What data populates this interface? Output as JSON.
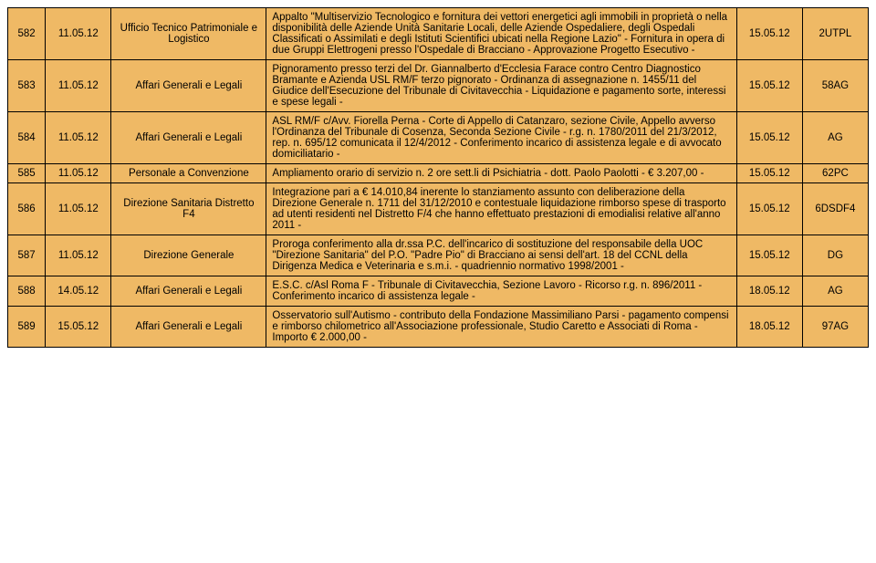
{
  "rows": [
    {
      "num": "582",
      "date1": "11.05.12",
      "dept": "Ufficio Tecnico Patrimoniale e Logistico",
      "desc": "Appalto \"Multiservizio Tecnologico e fornitura dei vettori energetici agli immobili in proprietà o nella disponibilità delle Aziende Unità Sanitarie Locali, delle Aziende Ospedaliere, degli Ospedali Classificati o Assimilati e degli Istituti Scientifici ubicati nella Regione Lazio\" - Fornitura in opera di due Gruppi Elettrogeni presso l'Ospedale di Bracciano - Approvazione Progetto Esecutivo -",
      "date2": "15.05.12",
      "code": "2UTPL"
    },
    {
      "num": "583",
      "date1": "11.05.12",
      "dept": "Affari Generali e Legali",
      "desc": "Pignoramento presso terzi del Dr. Giannalberto d'Ecclesia Farace contro Centro Diagnostico Bramante e Azienda USL RM/F terzo pignorato - Ordinanza di assegnazione n. 1455/11 del Giudice dell'Esecuzione del Tribunale di Civitavecchia - Liquidazione e pagamento sorte, interessi e spese legali -",
      "date2": "15.05.12",
      "code": "58AG"
    },
    {
      "num": "584",
      "date1": "11.05.12",
      "dept": "Affari Generali e Legali",
      "desc": "ASL RM/F c/Avv. Fiorella Perna - Corte di Appello di Catanzaro, sezione Civile, Appello avverso l'Ordinanza del Tribunale di Cosenza, Seconda Sezione Civile - r.g. n. 1780/2011 del 21/3/2012, rep. n. 695/12 comunicata il 12/4/2012 - Conferimento incarico di assistenza legale e di avvocato domiciliatario -",
      "date2": "15.05.12",
      "code": "AG"
    },
    {
      "num": "585",
      "date1": "11.05.12",
      "dept": "Personale a Convenzione",
      "desc": "Ampliamento orario di servizio n. 2 ore sett.li di Psichiatria - dott. Paolo Paolotti - € 3.207,00 -",
      "date2": "15.05.12",
      "code": "62PC"
    },
    {
      "num": "586",
      "date1": "11.05.12",
      "dept": "Direzione Sanitaria Distretto F4",
      "desc": "Integrazione pari a € 14.010,84 inerente lo stanziamento assunto con deliberazione della Direzione Generale n. 1711 del 31/12/2010 e contestuale liquidazione rimborso spese di trasporto ad utenti residenti nel Distretto F/4 che hanno effettuato prestazioni di emodialisi relative all'anno 2011 -",
      "date2": "15.05.12",
      "code": "6DSDF4"
    },
    {
      "num": "587",
      "date1": "11.05.12",
      "dept": "Direzione Generale",
      "desc": "Proroga conferimento alla dr.ssa P.C. dell'incarico di sostituzione del responsabile della UOC \"Direzione Sanitaria\" del P.O. \"Padre Pio\" di Bracciano ai sensi dell'art. 18 del CCNL della Dirigenza Medica e Veterinaria e s.m.i. - quadriennio normativo 1998/2001 -",
      "date2": "15.05.12",
      "code": "DG"
    },
    {
      "num": "588",
      "date1": "14.05.12",
      "dept": "Affari Generali e Legali",
      "desc": "E.S.C. c/Asl Roma F - Tribunale di Civitavecchia, Sezione Lavoro - Ricorso r.g. n. 896/2011 - Conferimento incarico di assistenza legale -",
      "date2": "18.05.12",
      "code": "AG"
    },
    {
      "num": "589",
      "date1": "15.05.12",
      "dept": "Affari Generali e Legali",
      "desc": "Osservatorio sull'Autismo - contributo della Fondazione Massimiliano Parsi - pagamento compensi e rimborso chilometrico all'Associazione professionale, Studio Caretto e Associati di Roma - Importo € 2.000,00 -",
      "date2": "18.05.12",
      "code": "97AG"
    }
  ]
}
